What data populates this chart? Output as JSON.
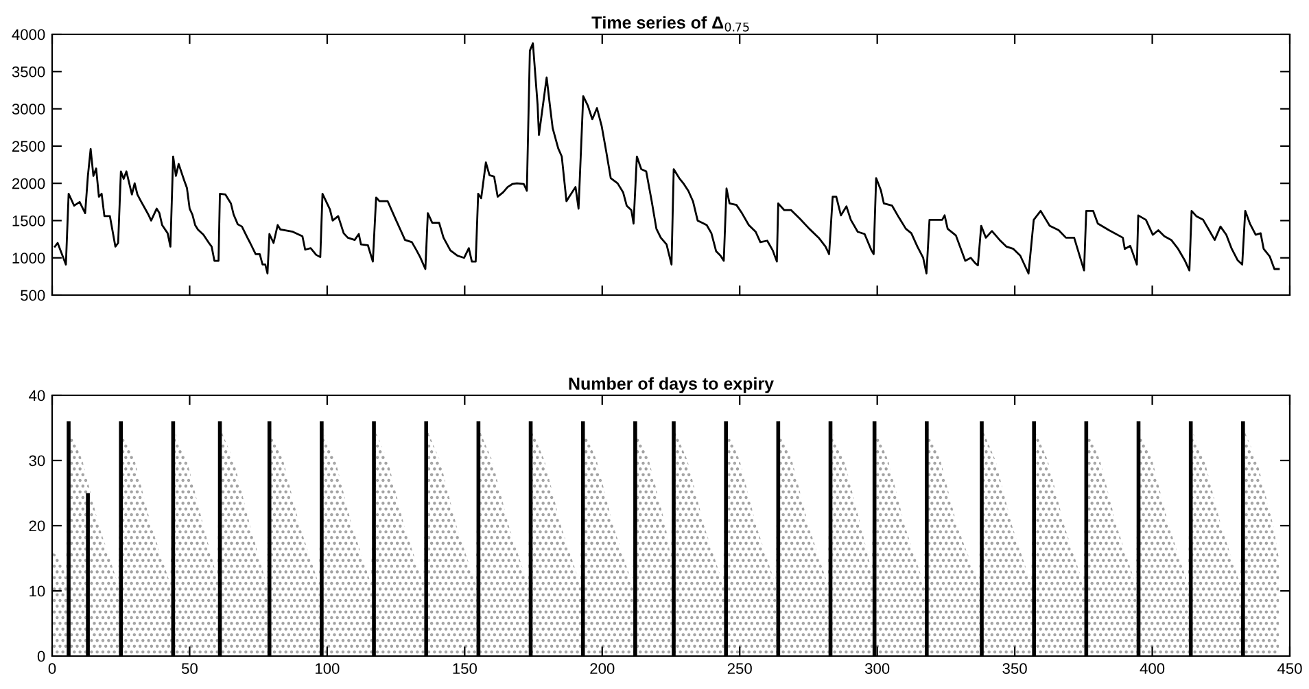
{
  "chart_data": [
    {
      "type": "line",
      "title": "Time series of Δ$_{0.75}$",
      "xlim": [
        0,
        450
      ],
      "xticks": [
        0,
        50,
        100,
        150,
        200,
        250,
        300,
        350,
        400,
        450
      ],
      "ylim": [
        500,
        4000
      ],
      "yticks": [
        500,
        1000,
        1500,
        2000,
        2500,
        3000,
        3500,
        4000
      ],
      "tick_labels": "y",
      "grid": false,
      "legend": false,
      "series": [
        {
          "color": "#000000",
          "x": [
            1,
            2,
            5,
            6,
            8,
            10,
            12,
            13,
            14,
            15,
            16,
            17,
            18,
            19,
            21,
            23,
            24,
            25,
            26,
            27,
            29,
            30,
            31,
            32,
            35,
            36,
            38,
            39,
            40,
            42,
            43,
            44,
            45,
            46,
            48,
            49,
            50,
            51,
            52,
            53,
            55,
            57,
            58,
            59,
            60.5,
            61,
            63,
            65,
            66,
            67.5,
            69,
            71,
            72,
            74,
            75.5,
            76.5,
            77.5,
            78.3,
            79,
            80.5,
            82,
            83,
            87.5,
            91,
            92,
            94,
            96,
            97.5,
            98.3,
            101,
            102,
            104,
            106,
            107.5,
            110,
            111.5,
            112.3,
            114.8,
            116.6,
            117.8,
            119,
            122,
            125,
            126.6,
            128.3,
            130.8,
            132.5,
            133.8,
            135.7,
            136.6,
            138.2,
            140.7,
            142.3,
            144.8,
            147.3,
            149.8,
            151.5,
            152.6,
            154,
            154.9,
            156,
            157.7,
            159,
            160.7,
            162,
            164,
            165.6,
            167.3,
            169,
            171.5,
            172.6,
            173.7,
            174.8,
            176.5,
            177,
            179.8,
            181,
            182,
            184,
            185.3,
            187,
            188,
            190.3,
            191.4,
            193.1,
            194.8,
            196.4,
            198.1,
            199.8,
            201.4,
            203.1,
            205.6,
            207.6,
            208.9,
            210.6,
            211.4,
            212.6,
            214.2,
            216,
            218,
            219.7,
            221.3,
            223.4,
            225.2,
            226,
            228,
            229.7,
            231.3,
            233,
            234.7,
            236.4,
            238,
            239.7,
            241.4,
            243,
            244.2,
            245.2,
            246.3,
            248.8,
            250.8,
            253.3,
            255.8,
            257.5,
            260,
            262,
            263.5,
            264,
            266.2,
            268.7,
            272,
            275.3,
            278.7,
            281.2,
            282.5,
            283.8,
            285.1,
            286.8,
            288.8,
            290.4,
            292.9,
            295.4,
            297.9,
            298.7,
            299.6,
            301.3,
            302.4,
            305.4,
            307.9,
            310.4,
            312.4,
            314.6,
            316.7,
            317.9,
            319,
            323.6,
            324.5,
            325.6,
            328.6,
            332,
            334,
            335.6,
            336.6,
            337.8,
            339.5,
            341.7,
            344.5,
            347,
            349.5,
            352,
            355,
            356.9,
            359.4,
            362.7,
            366,
            368.6,
            371.6,
            375.2,
            376,
            378.5,
            380.2,
            384.3,
            389.3,
            390,
            392,
            394.4,
            394.9,
            397.7,
            400.2,
            402.2,
            404.4,
            406.9,
            409.4,
            411.9,
            413.5,
            414.3,
            416,
            418.5,
            421,
            422.7,
            424.8,
            426.9,
            428.9,
            431,
            432.7,
            433.8,
            435.5,
            437.6,
            439.4,
            440.5,
            442.7,
            444.4,
            446
          ],
          "values": [
            1150,
            1200,
            910,
            1860,
            1700,
            1750,
            1600,
            2100,
            2460,
            2100,
            2200,
            1820,
            1860,
            1560,
            1560,
            1150,
            1200,
            2160,
            2060,
            2160,
            1850,
            2000,
            1850,
            1780,
            1580,
            1500,
            1660,
            1600,
            1440,
            1330,
            1150,
            2360,
            2100,
            2260,
            2040,
            1940,
            1660,
            1580,
            1440,
            1380,
            1310,
            1200,
            1150,
            960,
            960,
            1860,
            1850,
            1730,
            1580,
            1450,
            1420,
            1270,
            1200,
            1050,
            1050,
            910,
            910,
            790,
            1320,
            1200,
            1440,
            1380,
            1350,
            1290,
            1110,
            1130,
            1040,
            1010,
            1860,
            1650,
            1500,
            1560,
            1330,
            1270,
            1240,
            1320,
            1180,
            1170,
            950,
            1810,
            1760,
            1760,
            1510,
            1380,
            1240,
            1210,
            1100,
            1010,
            850,
            1600,
            1470,
            1470,
            1270,
            1100,
            1030,
            1000,
            1130,
            950,
            950,
            1860,
            1800,
            2280,
            2110,
            2090,
            1820,
            1880,
            1950,
            1990,
            2000,
            1990,
            1900,
            3780,
            3880,
            3060,
            2650,
            3420,
            3040,
            2740,
            2470,
            2360,
            1760,
            1820,
            1950,
            1660,
            3170,
            3040,
            2860,
            3010,
            2770,
            2440,
            2070,
            2000,
            1880,
            1700,
            1640,
            1460,
            2360,
            2190,
            2160,
            1760,
            1390,
            1270,
            1180,
            910,
            2190,
            2070,
            1990,
            1900,
            1760,
            1500,
            1470,
            1440,
            1330,
            1090,
            1030,
            960,
            1930,
            1730,
            1710,
            1600,
            1440,
            1350,
            1210,
            1230,
            1100,
            950,
            1730,
            1640,
            1640,
            1520,
            1390,
            1270,
            1150,
            1050,
            1820,
            1820,
            1570,
            1690,
            1510,
            1350,
            1320,
            1100,
            1050,
            2070,
            1910,
            1730,
            1700,
            1540,
            1390,
            1330,
            1150,
            1000,
            790,
            1510,
            1510,
            1570,
            1390,
            1300,
            960,
            1000,
            930,
            900,
            1430,
            1270,
            1360,
            1240,
            1150,
            1120,
            1030,
            790,
            1510,
            1630,
            1430,
            1370,
            1270,
            1270,
            830,
            1630,
            1630,
            1460,
            1370,
            1270,
            1120,
            1160,
            910,
            1570,
            1510,
            1310,
            1370,
            1290,
            1240,
            1120,
            960,
            830,
            1630,
            1560,
            1510,
            1350,
            1240,
            1420,
            1310,
            1120,
            970,
            910,
            1630,
            1460,
            1310,
            1330,
            1120,
            1020,
            850,
            850
          ]
        }
      ]
    },
    {
      "type": "area",
      "title": "Number of days to expiry",
      "xlim": [
        0,
        450
      ],
      "xticks": [
        0,
        50,
        100,
        150,
        200,
        250,
        300,
        350,
        400,
        450
      ],
      "ylim": [
        0,
        40
      ],
      "yticks": [
        0,
        10,
        20,
        30,
        40
      ],
      "grid": false,
      "legend": false,
      "series": [
        {
          "color": "#a0a0a0",
          "x": [
            0,
            3,
            5,
            6,
            7,
            11,
            17,
            24,
            25,
            26,
            30,
            36,
            43,
            44,
            45,
            49,
            55,
            60,
            61,
            62,
            66,
            72,
            78,
            79,
            80,
            84,
            90,
            97,
            98,
            99,
            103,
            109,
            116,
            117,
            118,
            122,
            128,
            135,
            136,
            137,
            141,
            147,
            154,
            155,
            156,
            160,
            166,
            173,
            174,
            175,
            179,
            185,
            192,
            193,
            194,
            198,
            204,
            211,
            212,
            213,
            217,
            223,
            225,
            226,
            227,
            231,
            237,
            244,
            245,
            246,
            250,
            256,
            263,
            264,
            265,
            269,
            275,
            282,
            283,
            284,
            288,
            294,
            298,
            299,
            300,
            304,
            310,
            317,
            318,
            319,
            323,
            329,
            337,
            338,
            339,
            343,
            349,
            356,
            357,
            358,
            362,
            368,
            375,
            376,
            377,
            381,
            387,
            394,
            395,
            396,
            400,
            406,
            413,
            414,
            415,
            419,
            425,
            432,
            433,
            434,
            438,
            444,
            446
          ],
          "values": [
            16,
            15,
            12,
            36,
            34,
            30,
            20,
            11,
            36,
            34,
            30,
            20,
            11,
            36,
            34,
            30,
            20,
            12,
            36,
            34,
            30,
            20,
            11,
            36,
            34,
            30,
            20,
            11,
            36,
            34,
            30,
            20,
            11,
            36,
            34,
            30,
            20,
            11,
            36,
            34,
            30,
            20,
            11,
            36,
            34,
            30,
            20,
            11,
            36,
            34,
            30,
            20,
            11,
            36,
            34,
            30,
            20,
            11,
            36,
            34,
            30,
            20,
            15,
            36,
            34,
            30,
            20,
            11,
            36,
            34,
            30,
            20,
            11,
            36,
            34,
            30,
            20,
            11,
            36,
            34,
            30,
            20,
            13,
            36,
            34,
            30,
            20,
            11,
            36,
            34,
            30,
            20,
            11,
            36,
            34,
            30,
            20,
            11,
            36,
            34,
            30,
            20,
            11,
            36,
            34,
            30,
            20,
            11,
            36,
            34,
            30,
            20,
            11,
            36,
            34,
            30,
            20,
            11,
            36,
            34,
            30,
            20,
            15
          ]
        },
        {
          "type": "bar",
          "color": "#000000",
          "x": [
            6,
            13,
            25,
            44,
            61,
            79,
            98,
            117,
            136,
            155,
            174,
            193,
            212,
            226,
            245,
            264,
            283,
            299,
            318,
            338,
            357,
            376,
            395,
            414,
            433
          ],
          "values": [
            36,
            25,
            36,
            36,
            36,
            36,
            36,
            36,
            36,
            36,
            36,
            36,
            36,
            36,
            36,
            36,
            36,
            36,
            36,
            36,
            36,
            36,
            36,
            36,
            36
          ]
        }
      ]
    }
  ]
}
